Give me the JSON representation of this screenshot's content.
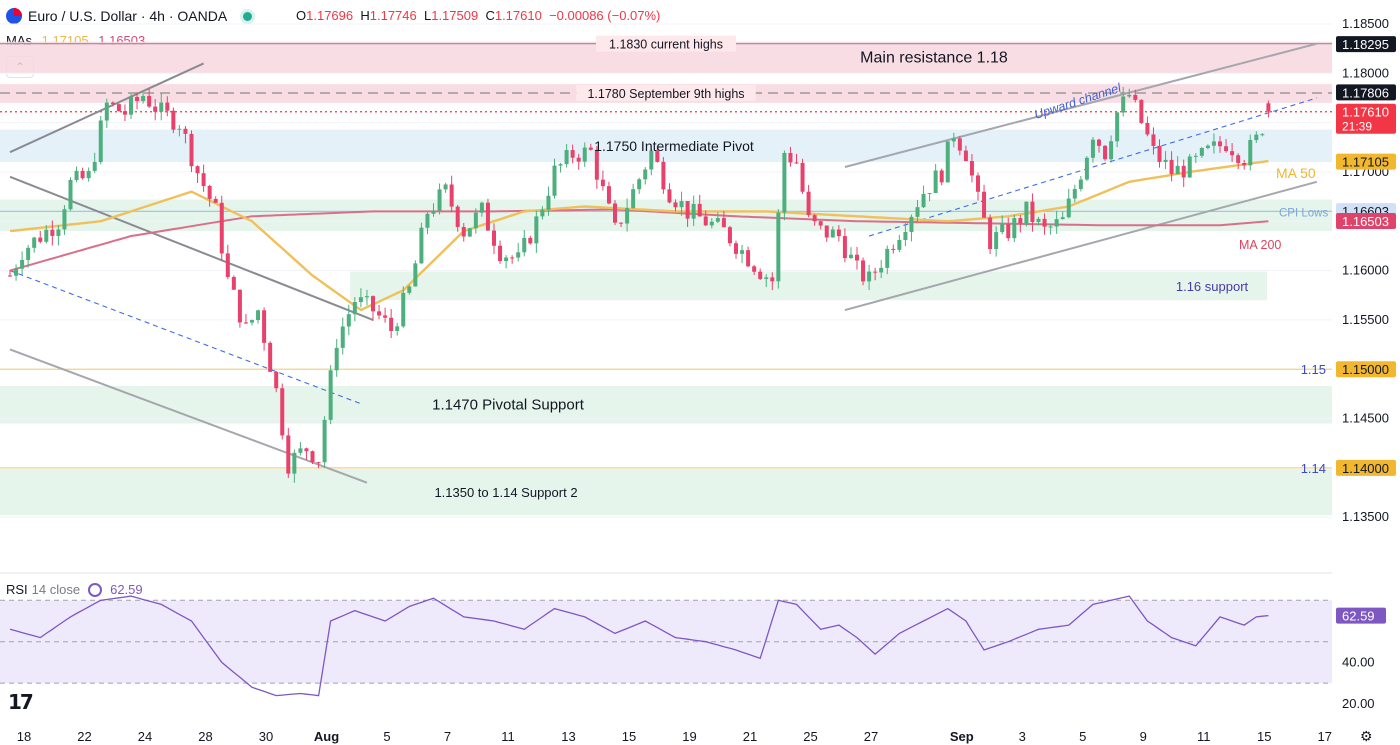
{
  "header": {
    "symbol": "Euro / U.S. Dollar · 4h · OANDA",
    "o_label": "O",
    "o": "1.17696",
    "h_label": "H",
    "h": "1.17746",
    "l_label": "L",
    "l": "1.17509",
    "c_label": "C",
    "c": "1.17610",
    "change": "−0.00086 (−0.07%)"
  },
  "mas": {
    "label": "MAs",
    "ma50": "1.17105",
    "ma200": "1.16503"
  },
  "collapse_icon": "chevron-up-icon",
  "rsi": {
    "label": "RSI",
    "params": "14 close",
    "value": "62.59"
  },
  "logo_text": "17",
  "colors": {
    "up": "#4caf7d",
    "down": "#e8416b",
    "ma50": "#f0c05a",
    "ma200": "#d9708a",
    "rsi": "#7e57c2",
    "resistance": "#f8d7df",
    "support": "#e2f4ea",
    "pivot": "#e1eff8",
    "price_dark": "#131722",
    "price_red": "#f23645",
    "ma50_label": "#f0b72f"
  },
  "chart_data": {
    "type": "candlestick",
    "symbol": "EURUSD",
    "timeframe": "4h",
    "y_ticks": [
      "1.18500",
      "1.18000",
      "1.17500",
      "1.17000",
      "1.16500",
      "1.16000",
      "1.15500",
      "1.15000",
      "1.14500",
      "1.14000",
      "1.13500"
    ],
    "ylim": [
      1.1335,
      1.1854
    ],
    "x_ticks": [
      {
        "label": "18",
        "bold": false,
        "i": 0
      },
      {
        "label": "22",
        "bold": false,
        "i": 10
      },
      {
        "label": "24",
        "bold": false,
        "i": 20
      },
      {
        "label": "28",
        "bold": false,
        "i": 30
      },
      {
        "label": "30",
        "bold": false,
        "i": 40
      },
      {
        "label": "Aug",
        "bold": true,
        "i": 50
      },
      {
        "label": "5",
        "bold": false,
        "i": 60
      },
      {
        "label": "7",
        "bold": false,
        "i": 70
      },
      {
        "label": "11",
        "bold": false,
        "i": 80
      },
      {
        "label": "13",
        "bold": false,
        "i": 90
      },
      {
        "label": "15",
        "bold": false,
        "i": 100
      },
      {
        "label": "19",
        "bold": false,
        "i": 110
      },
      {
        "label": "21",
        "bold": false,
        "i": 120
      },
      {
        "label": "25",
        "bold": false,
        "i": 130
      },
      {
        "label": "27",
        "bold": false,
        "i": 140
      },
      {
        "label": "Sep",
        "bold": true,
        "i": 155
      },
      {
        "label": "3",
        "bold": false,
        "i": 165
      },
      {
        "label": "5",
        "bold": false,
        "i": 175
      },
      {
        "label": "9",
        "bold": false,
        "i": 185
      },
      {
        "label": "11",
        "bold": false,
        "i": 195
      },
      {
        "label": "15",
        "bold": false,
        "i": 205
      },
      {
        "label": "17",
        "bold": false,
        "i": 215
      }
    ],
    "close_anchors": [
      [
        0,
        1.1595
      ],
      [
        2,
        1.162
      ],
      [
        5,
        1.1635
      ],
      [
        8,
        1.165
      ],
      [
        10,
        1.1688
      ],
      [
        13,
        1.1695
      ],
      [
        16,
        1.1768
      ],
      [
        19,
        1.176
      ],
      [
        22,
        1.1778
      ],
      [
        25,
        1.176
      ],
      [
        28,
        1.175
      ],
      [
        31,
        1.17
      ],
      [
        34,
        1.166
      ],
      [
        36,
        1.159
      ],
      [
        39,
        1.154
      ],
      [
        41,
        1.156
      ],
      [
        44,
        1.1478
      ],
      [
        46,
        1.1405
      ],
      [
        49,
        1.142
      ],
      [
        51,
        1.141
      ],
      [
        54,
        1.153
      ],
      [
        57,
        1.157
      ],
      [
        60,
        1.156
      ],
      [
        63,
        1.154
      ],
      [
        66,
        1.158
      ],
      [
        69,
        1.166
      ],
      [
        72,
        1.168
      ],
      [
        75,
        1.164
      ],
      [
        78,
        1.166
      ],
      [
        81,
        1.162
      ],
      [
        84,
        1.161
      ],
      [
        87,
        1.165
      ],
      [
        90,
        1.17
      ],
      [
        93,
        1.1718
      ],
      [
        96,
        1.172
      ],
      [
        98,
        1.168
      ],
      [
        100,
        1.164
      ],
      [
        103,
        1.168
      ],
      [
        106,
        1.172
      ],
      [
        109,
        1.168
      ],
      [
        112,
        1.166
      ],
      [
        115,
        1.165
      ],
      [
        118,
        1.164
      ],
      [
        121,
        1.162
      ],
      [
        124,
        1.16
      ],
      [
        126,
        1.159
      ],
      [
        128,
        1.172
      ],
      [
        130,
        1.171
      ],
      [
        132,
        1.165
      ],
      [
        134,
        1.164
      ],
      [
        137,
        1.1635
      ],
      [
        140,
        1.16
      ],
      [
        142,
        1.159
      ],
      [
        145,
        1.162
      ],
      [
        148,
        1.165
      ],
      [
        151,
        1.168
      ],
      [
        154,
        1.17
      ],
      [
        156,
        1.174
      ],
      [
        158,
        1.172
      ],
      [
        160,
        1.167
      ],
      [
        162,
        1.163
      ],
      [
        165,
        1.164
      ],
      [
        168,
        1.166
      ],
      [
        171,
        1.164
      ],
      [
        174,
        1.165
      ],
      [
        177,
        1.17
      ],
      [
        179,
        1.174
      ],
      [
        181,
        1.172
      ],
      [
        183,
        1.176
      ],
      [
        185,
        1.1778
      ],
      [
        187,
        1.175
      ],
      [
        189,
        1.172
      ],
      [
        192,
        1.17
      ],
      [
        195,
        1.1705
      ],
      [
        198,
        1.172
      ],
      [
        201,
        1.173
      ],
      [
        204,
        1.1715
      ],
      [
        206,
        1.1732
      ],
      [
        208,
        1.1761
      ]
    ],
    "candle_count": 209,
    "ma50_anchors": [
      [
        0,
        1.164
      ],
      [
        15,
        1.165
      ],
      [
        30,
        1.168
      ],
      [
        40,
        1.165
      ],
      [
        50,
        1.1595
      ],
      [
        58,
        1.156
      ],
      [
        65,
        1.158
      ],
      [
        75,
        1.164
      ],
      [
        85,
        1.166
      ],
      [
        95,
        1.1665
      ],
      [
        110,
        1.166
      ],
      [
        125,
        1.166
      ],
      [
        140,
        1.1655
      ],
      [
        155,
        1.165
      ],
      [
        165,
        1.1655
      ],
      [
        175,
        1.1665
      ],
      [
        185,
        1.169
      ],
      [
        195,
        1.17
      ],
      [
        208,
        1.1711
      ]
    ],
    "ma200_anchors": [
      [
        0,
        1.16
      ],
      [
        20,
        1.1635
      ],
      [
        40,
        1.1655
      ],
      [
        60,
        1.166
      ],
      [
        80,
        1.166
      ],
      [
        100,
        1.1662
      ],
      [
        120,
        1.1655
      ],
      [
        140,
        1.165
      ],
      [
        160,
        1.1648
      ],
      [
        180,
        1.1646
      ],
      [
        200,
        1.1646
      ],
      [
        208,
        1.165
      ]
    ],
    "rsi_anchors": [
      [
        0,
        56
      ],
      [
        5,
        52
      ],
      [
        10,
        62
      ],
      [
        15,
        70
      ],
      [
        20,
        72
      ],
      [
        25,
        68
      ],
      [
        30,
        60
      ],
      [
        35,
        40
      ],
      [
        40,
        28
      ],
      [
        44,
        24
      ],
      [
        48,
        25
      ],
      [
        51,
        24
      ],
      [
        53,
        60
      ],
      [
        57,
        65
      ],
      [
        62,
        60
      ],
      [
        66,
        67
      ],
      [
        70,
        71
      ],
      [
        75,
        62
      ],
      [
        80,
        60
      ],
      [
        85,
        56
      ],
      [
        90,
        66
      ],
      [
        95,
        62
      ],
      [
        100,
        54
      ],
      [
        105,
        60
      ],
      [
        110,
        52
      ],
      [
        115,
        50
      ],
      [
        120,
        46
      ],
      [
        124,
        42
      ],
      [
        127,
        70
      ],
      [
        130,
        68
      ],
      [
        134,
        56
      ],
      [
        137,
        58
      ],
      [
        140,
        52
      ],
      [
        143,
        44
      ],
      [
        147,
        54
      ],
      [
        151,
        60
      ],
      [
        155,
        66
      ],
      [
        158,
        60
      ],
      [
        161,
        46
      ],
      [
        165,
        50
      ],
      [
        170,
        56
      ],
      [
        175,
        58
      ],
      [
        179,
        68
      ],
      [
        182,
        70
      ],
      [
        185,
        72
      ],
      [
        188,
        60
      ],
      [
        192,
        52
      ],
      [
        196,
        48
      ],
      [
        200,
        62
      ],
      [
        204,
        58
      ],
      [
        206,
        62
      ],
      [
        208,
        62.59
      ]
    ],
    "rsi_levels": {
      "upper": 70,
      "middle": 50,
      "lower": 30,
      "ticks": [
        "40.00",
        "20.00"
      ],
      "ylim": [
        18,
        74
      ]
    },
    "price_tags": [
      {
        "text": "1.18295",
        "value": 1.18295,
        "style": "dark"
      },
      {
        "text": "1.17806",
        "value": 1.17806,
        "style": "dark"
      },
      {
        "text": "1.17610",
        "value": 1.1761,
        "style": "red",
        "sub": "21:39"
      },
      {
        "text": "1.17105",
        "value": 1.17105,
        "style": "yellow"
      },
      {
        "text": "1.16603",
        "value": 1.16603,
        "style": "blue"
      },
      {
        "text": "1.16503",
        "value": 1.16503,
        "style": "pink"
      },
      {
        "text": "1.15000",
        "value": 1.15,
        "style": "yellow"
      },
      {
        "text": "1.14000",
        "value": 1.14,
        "style": "yellow"
      }
    ],
    "rsi_tag": "62.59",
    "zones": [
      {
        "name": "main-resistance",
        "from": 1.18,
        "to": 1.1832,
        "label": "Main resistance 1.18",
        "kind": "resistance"
      },
      {
        "name": "sep9-highs",
        "from": 1.177,
        "to": 1.1789,
        "label": "",
        "kind": "resistance"
      },
      {
        "name": "intermediate-pivot",
        "from": 1.171,
        "to": 1.1743,
        "label": "1.1750 Intermediate Pivot",
        "kind": "pivot"
      },
      {
        "name": "cpi-lows",
        "from": 1.164,
        "to": 1.1672,
        "label": "",
        "kind": "support"
      },
      {
        "name": "support-116",
        "from": 1.157,
        "to": 1.1599,
        "label": "1.16 support",
        "kind": "support"
      },
      {
        "name": "pivotal-support",
        "from": 1.1445,
        "to": 1.1483,
        "label": "1.1470 Pivotal Support",
        "kind": "support"
      },
      {
        "name": "support-2",
        "from": 1.1352,
        "to": 1.1399,
        "label": "1.1350 to 1.14 Support 2",
        "kind": "support"
      }
    ],
    "hlines": [
      {
        "value": 1.183,
        "label": "1.1830 current highs",
        "style": "solid",
        "color": "#9b8b9c"
      },
      {
        "value": 1.178,
        "label": "1.1780 September 9th highs",
        "style": "dashed",
        "color": "#9a9a9a"
      },
      {
        "value": 1.1761,
        "label": "",
        "style": "dotted",
        "color": "#f23645"
      },
      {
        "value": 1.166,
        "label": "CPI Lows",
        "style": "solid",
        "color": "#9fc6ee"
      },
      {
        "value": 1.15,
        "label": "1.15",
        "style": "solid",
        "color": "#f4d38a"
      },
      {
        "value": 1.14,
        "label": "1.14",
        "style": "solid",
        "color": "#f4d38a"
      }
    ],
    "annotations": {
      "upward_channel": "Upward channel",
      "ma50": "MA 50",
      "ma200": "MA 200"
    },
    "trendlines": [
      {
        "name": "upper-channel",
        "from": [
          138,
          1.1705
        ],
        "to": [
          216,
          1.183
        ],
        "color": "#a6a6ad"
      },
      {
        "name": "lower-channel",
        "from": [
          138,
          1.156
        ],
        "to": [
          216,
          1.169
        ],
        "color": "#a6a6ad"
      },
      {
        "name": "channel-mid",
        "from": [
          142,
          1.1635
        ],
        "to": [
          216,
          1.1775
        ],
        "color": "#3f6ee0",
        "dashed": true
      },
      {
        "name": "july-high-line",
        "from": [
          0,
          1.172
        ],
        "to": [
          32,
          1.181
        ],
        "color": "#8a8a92"
      },
      {
        "name": "down-upper",
        "from": [
          0,
          1.1695
        ],
        "to": [
          60,
          1.155
        ],
        "color": "#8a8a92"
      },
      {
        "name": "down-lower",
        "from": [
          0,
          1.152
        ],
        "to": [
          59,
          1.1385
        ],
        "color": "#a6a6ad"
      },
      {
        "name": "down-mid",
        "from": [
          0,
          1.16
        ],
        "to": [
          58,
          1.1465
        ],
        "color": "#3f6ee0",
        "dashed": true
      }
    ]
  }
}
